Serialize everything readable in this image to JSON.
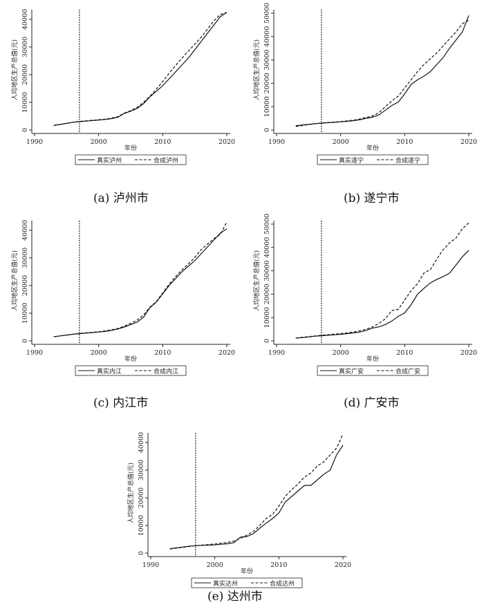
{
  "chart_data": [
    {
      "id": "a",
      "type": "line",
      "caption": "(a) 泸州市",
      "xlabel": "年份",
      "ylabel": "人均地区生产总值(元)",
      "xlim": [
        1990,
        2020
      ],
      "ylim": [
        0,
        43500
      ],
      "xticks": [
        1990,
        2000,
        2010,
        2020
      ],
      "yticks": [
        0,
        10000,
        20000,
        30000,
        40000
      ],
      "vline": 1997,
      "x": [
        1993,
        1994,
        1995,
        1996,
        1997,
        1998,
        1999,
        2000,
        2001,
        2002,
        2003,
        2004,
        2005,
        2006,
        2007,
        2008,
        2009,
        2010,
        2011,
        2012,
        2013,
        2014,
        2015,
        2016,
        2017,
        2018,
        2019,
        2020
      ],
      "series": [
        {
          "name": "真实泸州",
          "style": "solid",
          "values": [
            1700,
            2000,
            2400,
            2800,
            3000,
            3200,
            3400,
            3600,
            3800,
            4100,
            4600,
            6000,
            6800,
            7800,
            9500,
            12000,
            14000,
            16000,
            18500,
            21000,
            23500,
            26000,
            29000,
            32000,
            35000,
            38000,
            41000,
            42500
          ]
        },
        {
          "name": "合成泸州",
          "style": "dashed",
          "values": [
            1600,
            2000,
            2400,
            2800,
            3100,
            3300,
            3500,
            3700,
            3900,
            4300,
            4800,
            6100,
            7000,
            8200,
            10000,
            12200,
            14800,
            17500,
            20500,
            23300,
            26000,
            28500,
            31000,
            33500,
            36500,
            39500,
            41800,
            42500
          ]
        }
      ]
    },
    {
      "id": "b",
      "type": "line",
      "caption": "(b) 遂宁市",
      "xlabel": "年份",
      "ylabel": "人均地区生产总值(元)",
      "xlim": [
        1990,
        2020
      ],
      "ylim": [
        0,
        51500
      ],
      "xticks": [
        1990,
        2000,
        2010,
        2020
      ],
      "yticks": [
        0,
        10000,
        20000,
        30000,
        40000,
        50000
      ],
      "vline": 1997,
      "x": [
        1993,
        1994,
        1995,
        1996,
        1997,
        1998,
        1999,
        2000,
        2001,
        2002,
        2003,
        2004,
        2005,
        2006,
        2007,
        2008,
        2009,
        2010,
        2011,
        2012,
        2013,
        2014,
        2015,
        2016,
        2017,
        2018,
        2019,
        2020
      ],
      "series": [
        {
          "name": "真实遂宁",
          "style": "solid",
          "values": [
            1800,
            2100,
            2400,
            2700,
            2900,
            3100,
            3300,
            3500,
            3700,
            4000,
            4400,
            5000,
            5500,
            6500,
            8500,
            10500,
            12000,
            15500,
            19500,
            21500,
            23000,
            25000,
            28000,
            31000,
            35000,
            38500,
            42000,
            49000
          ]
        },
        {
          "name": "合成遂宁",
          "style": "dashed",
          "values": [
            1500,
            1900,
            2300,
            2700,
            3000,
            3200,
            3400,
            3600,
            3900,
            4200,
            4700,
            5400,
            6000,
            7500,
            10000,
            12500,
            14500,
            18000,
            21500,
            25000,
            28000,
            30500,
            33000,
            36000,
            39000,
            42000,
            45500,
            47000
          ]
        }
      ]
    },
    {
      "id": "c",
      "type": "line",
      "caption": "(c) 内江市",
      "xlabel": "年份",
      "ylabel": "人均地区生产总值(元)",
      "xlim": [
        1990,
        2020
      ],
      "ylim": [
        0,
        43500
      ],
      "xticks": [
        1990,
        2000,
        2010,
        2020
      ],
      "yticks": [
        0,
        10000,
        20000,
        30000,
        40000
      ],
      "vline": 1997,
      "x": [
        1993,
        1994,
        1995,
        1996,
        1997,
        1998,
        1999,
        2000,
        2001,
        2002,
        2003,
        2004,
        2005,
        2006,
        2007,
        2008,
        2009,
        2010,
        2011,
        2012,
        2013,
        2014,
        2015,
        2016,
        2017,
        2018,
        2019,
        2020
      ],
      "series": [
        {
          "name": "真实内江",
          "style": "solid",
          "values": [
            1500,
            1800,
            2100,
            2400,
            2600,
            2800,
            3000,
            3200,
            3400,
            3800,
            4300,
            5000,
            5900,
            6800,
            8500,
            12000,
            14000,
            17000,
            20000,
            22500,
            25000,
            27000,
            29000,
            31500,
            34000,
            36500,
            39000,
            40500
          ]
        },
        {
          "name": "合成内江",
          "style": "dashed",
          "values": [
            1500,
            1800,
            2100,
            2400,
            2700,
            2900,
            3100,
            3300,
            3600,
            4000,
            4500,
            5300,
            6300,
            7500,
            9300,
            12200,
            14200,
            17300,
            20500,
            23200,
            25700,
            27800,
            30200,
            33000,
            35000,
            37000,
            38500,
            43000
          ]
        }
      ]
    },
    {
      "id": "d",
      "type": "line",
      "caption": "(d) 广安市",
      "xlabel": "年份",
      "ylabel": "人均地区生产总值(元)",
      "xlim": [
        1990,
        2020
      ],
      "ylim": [
        0,
        51500
      ],
      "xticks": [
        1990,
        2000,
        2010,
        2020
      ],
      "yticks": [
        0,
        10000,
        20000,
        30000,
        40000,
        50000
      ],
      "vline": 1997,
      "x": [
        1993,
        1994,
        1995,
        1996,
        1997,
        1998,
        1999,
        2000,
        2001,
        2002,
        2003,
        2004,
        2005,
        2006,
        2007,
        2008,
        2009,
        2010,
        2011,
        2012,
        2013,
        2014,
        2015,
        2016,
        2017,
        2018,
        2019,
        2020
      ],
      "series": [
        {
          "name": "真实广安",
          "style": "solid",
          "values": [
            1200,
            1400,
            1700,
            2000,
            2200,
            2400,
            2600,
            2800,
            3100,
            3400,
            3800,
            4500,
            5500,
            6000,
            7000,
            8500,
            10500,
            12000,
            15500,
            20000,
            22500,
            24800,
            26300,
            27500,
            29000,
            32500,
            36000,
            38800
          ]
        },
        {
          "name": "合成广安",
          "style": "dashed",
          "values": [
            1200,
            1500,
            1800,
            2100,
            2400,
            2600,
            2900,
            3100,
            3400,
            3800,
            4300,
            5000,
            6000,
            7500,
            9500,
            13000,
            13500,
            17500,
            21500,
            24500,
            29000,
            30500,
            35000,
            39000,
            42000,
            44000,
            48000,
            50500
          ]
        }
      ]
    },
    {
      "id": "e",
      "type": "line",
      "caption": "(e) 达州市",
      "xlabel": "年份",
      "ylabel": "人均地区生产总值(元)",
      "xlim": [
        1990,
        2020
      ],
      "ylim": [
        0,
        43500
      ],
      "xticks": [
        1990,
        2000,
        2010,
        2020
      ],
      "yticks": [
        0,
        10000,
        20000,
        30000,
        40000
      ],
      "vline": 1997,
      "x": [
        1993,
        1994,
        1995,
        1996,
        1997,
        1998,
        1999,
        2000,
        2001,
        2002,
        2003,
        2004,
        2005,
        2006,
        2007,
        2008,
        2009,
        2010,
        2011,
        2012,
        2013,
        2014,
        2015,
        2016,
        2017,
        2018,
        2019,
        2020
      ],
      "series": [
        {
          "name": "真实达州",
          "style": "solid",
          "values": [
            1600,
            1900,
            2200,
            2500,
            2700,
            2800,
            2900,
            3000,
            3200,
            3400,
            3800,
            5800,
            6000,
            7000,
            9000,
            10800,
            12500,
            14500,
            18500,
            20500,
            22500,
            24500,
            24500,
            26500,
            28500,
            30000,
            35500,
            39000
          ]
        },
        {
          "name": "合成达州",
          "style": "dashed",
          "values": [
            1500,
            1800,
            2100,
            2400,
            2700,
            2900,
            3100,
            3300,
            3600,
            3900,
            4400,
            5300,
            6500,
            7800,
            10000,
            12500,
            14000,
            17000,
            20500,
            23000,
            25000,
            27500,
            29000,
            31500,
            33000,
            35500,
            38000,
            43000
          ]
        }
      ]
    }
  ]
}
